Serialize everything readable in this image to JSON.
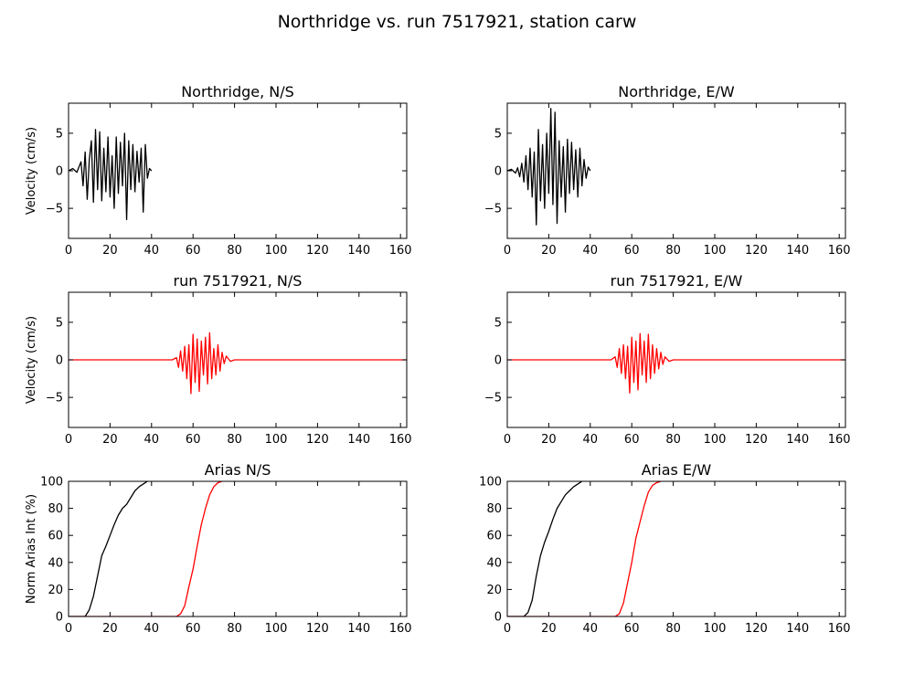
{
  "figure": {
    "suptitle": "Northridge vs. run 7517921, station carw"
  },
  "colors": {
    "observed": "#000000",
    "simulated": "#ff0000"
  },
  "chart_data": [
    {
      "id": "vel_obs_ns",
      "type": "line",
      "title": "Northridge, N/S",
      "ylabel": "Velocity (cm/s)",
      "xlim": [
        0,
        163
      ],
      "ylim": [
        -9,
        9
      ],
      "xticks": [
        0,
        20,
        40,
        60,
        80,
        100,
        120,
        140,
        160
      ],
      "yticks": [
        -5,
        0,
        5
      ],
      "series": [
        {
          "color": "#000000",
          "kind": "obs_vel",
          "x": [
            0,
            2,
            4,
            5,
            6,
            7,
            8,
            9,
            10,
            11,
            12,
            13,
            14,
            15,
            16,
            17,
            18,
            19,
            20,
            21,
            22,
            23,
            24,
            25,
            26,
            27,
            28,
            29,
            30,
            31,
            32,
            33,
            34,
            35,
            36,
            37,
            38,
            39,
            40
          ],
          "y": [
            0,
            0.3,
            -0.2,
            0.5,
            1.2,
            -2.0,
            2.5,
            -3.8,
            1.5,
            4.0,
            -4.2,
            5.5,
            -2.5,
            5.2,
            -4.0,
            3.0,
            -2.8,
            4.5,
            -3.5,
            2.0,
            -5.0,
            4.5,
            -3.0,
            3.8,
            -2.0,
            5.0,
            -6.5,
            4.0,
            -2.5,
            3.5,
            -2.8,
            2.6,
            -1.5,
            3.0,
            -5.5,
            3.5,
            -1.0,
            0.3,
            0
          ]
        }
      ]
    },
    {
      "id": "vel_obs_ew",
      "type": "line",
      "title": "Northridge, E/W",
      "ylabel": "",
      "xlim": [
        0,
        163
      ],
      "ylim": [
        -9,
        9
      ],
      "xticks": [
        0,
        20,
        40,
        60,
        80,
        100,
        120,
        140,
        160
      ],
      "yticks": [
        -5,
        0,
        5
      ],
      "series": [
        {
          "color": "#000000",
          "kind": "obs_vel",
          "x": [
            0,
            2,
            4,
            5,
            6,
            7,
            8,
            9,
            10,
            11,
            12,
            13,
            14,
            15,
            16,
            17,
            18,
            19,
            20,
            21,
            22,
            23,
            24,
            25,
            26,
            27,
            28,
            29,
            30,
            31,
            32,
            33,
            34,
            35,
            36,
            37,
            38,
            39,
            40
          ],
          "y": [
            0,
            0.2,
            -0.3,
            0.4,
            -0.8,
            1.0,
            -1.5,
            2.0,
            -2.5,
            3.0,
            -3.5,
            2.5,
            -7.2,
            5.5,
            -4.0,
            3.5,
            -5.0,
            5.0,
            -3.0,
            8.3,
            -4.5,
            7.8,
            -7.0,
            4.0,
            -3.5,
            3.2,
            -5.5,
            4.2,
            -3.0,
            3.8,
            -2.5,
            2.8,
            -3.5,
            3.0,
            -2.0,
            1.5,
            -1.0,
            0.5,
            0
          ]
        }
      ]
    },
    {
      "id": "vel_sim_ns",
      "type": "line",
      "title": "run 7517921, N/S",
      "ylabel": "Velocity (cm/s)",
      "xlim": [
        0,
        163
      ],
      "ylim": [
        -9,
        9
      ],
      "xticks": [
        0,
        20,
        40,
        60,
        80,
        100,
        120,
        140,
        160
      ],
      "yticks": [
        -5,
        0,
        5
      ],
      "series": [
        {
          "color": "#ff0000",
          "kind": "sim_vel",
          "x": [
            0,
            40,
            50,
            52,
            53,
            54,
            55,
            56,
            57,
            58,
            59,
            60,
            61,
            62,
            63,
            64,
            65,
            66,
            67,
            68,
            69,
            70,
            71,
            72,
            73,
            74,
            75,
            76,
            78,
            80,
            100,
            163
          ],
          "y": [
            0,
            0,
            0,
            0.3,
            -1.0,
            1.2,
            -1.5,
            1.8,
            -2.5,
            2.0,
            -4.5,
            3.4,
            -3.0,
            2.8,
            -4.2,
            2.5,
            -2.0,
            3.0,
            -3.2,
            3.6,
            -2.5,
            1.5,
            -2.0,
            2.0,
            -1.5,
            1.0,
            -0.5,
            0.5,
            -0.2,
            0,
            0,
            0
          ]
        }
      ]
    },
    {
      "id": "vel_sim_ew",
      "type": "line",
      "title": "run 7517921, E/W",
      "ylabel": "",
      "xlim": [
        0,
        163
      ],
      "ylim": [
        -9,
        9
      ],
      "xticks": [
        0,
        20,
        40,
        60,
        80,
        100,
        120,
        140,
        160
      ],
      "yticks": [
        -5,
        0,
        5
      ],
      "series": [
        {
          "color": "#ff0000",
          "kind": "sim_vel",
          "x": [
            0,
            40,
            50,
            52,
            53,
            54,
            55,
            56,
            57,
            58,
            59,
            60,
            61,
            62,
            63,
            64,
            65,
            66,
            67,
            68,
            69,
            70,
            71,
            72,
            73,
            74,
            75,
            76,
            78,
            80,
            100,
            163
          ],
          "y": [
            0,
            0,
            0,
            0.4,
            -1.0,
            1.5,
            -1.8,
            2.0,
            -2.5,
            1.8,
            -4.4,
            3.0,
            -3.0,
            2.5,
            -4.0,
            3.5,
            -2.0,
            2.5,
            -3.0,
            3.4,
            -2.5,
            2.0,
            -1.8,
            1.5,
            -1.2,
            1.0,
            -0.6,
            0.4,
            -0.2,
            0,
            0,
            0
          ]
        }
      ]
    },
    {
      "id": "arias_ns",
      "type": "line",
      "title": "Arias N/S",
      "ylabel": "Norm Arias Int (%)",
      "xlim": [
        0,
        163
      ],
      "ylim": [
        0,
        100
      ],
      "xticks": [
        0,
        20,
        40,
        60,
        80,
        100,
        120,
        140,
        160
      ],
      "yticks": [
        0,
        20,
        40,
        60,
        80,
        100
      ],
      "series": [
        {
          "color": "#000000",
          "kind": "arias",
          "x": [
            0,
            8,
            10,
            12,
            14,
            16,
            18,
            20,
            22,
            24,
            26,
            28,
            30,
            32,
            34,
            36,
            38
          ],
          "y": [
            0,
            0,
            5,
            15,
            30,
            45,
            52,
            60,
            68,
            75,
            80,
            83,
            88,
            93,
            96,
            98,
            100
          ]
        },
        {
          "color": "#ff0000",
          "kind": "arias",
          "x": [
            0,
            52,
            54,
            56,
            58,
            60,
            62,
            64,
            66,
            68,
            70,
            72,
            74
          ],
          "y": [
            0,
            0,
            2,
            8,
            22,
            35,
            52,
            68,
            80,
            90,
            96,
            99,
            100
          ]
        }
      ]
    },
    {
      "id": "arias_ew",
      "type": "line",
      "title": "Arias E/W",
      "ylabel": "",
      "xlim": [
        0,
        163
      ],
      "ylim": [
        0,
        100
      ],
      "xticks": [
        0,
        20,
        40,
        60,
        80,
        100,
        120,
        140,
        160
      ],
      "yticks": [
        0,
        20,
        40,
        60,
        80,
        100
      ],
      "series": [
        {
          "color": "#000000",
          "kind": "arias",
          "x": [
            0,
            8,
            10,
            12,
            14,
            16,
            18,
            20,
            22,
            24,
            26,
            28,
            30,
            32,
            34,
            36
          ],
          "y": [
            0,
            0,
            3,
            12,
            30,
            45,
            55,
            63,
            72,
            80,
            85,
            90,
            93,
            96,
            98,
            100
          ]
        },
        {
          "color": "#ff0000",
          "kind": "arias",
          "x": [
            0,
            52,
            54,
            56,
            58,
            60,
            62,
            64,
            66,
            68,
            70,
            72,
            74
          ],
          "y": [
            0,
            0,
            2,
            10,
            25,
            40,
            58,
            70,
            82,
            92,
            97,
            99,
            100
          ]
        }
      ]
    }
  ]
}
